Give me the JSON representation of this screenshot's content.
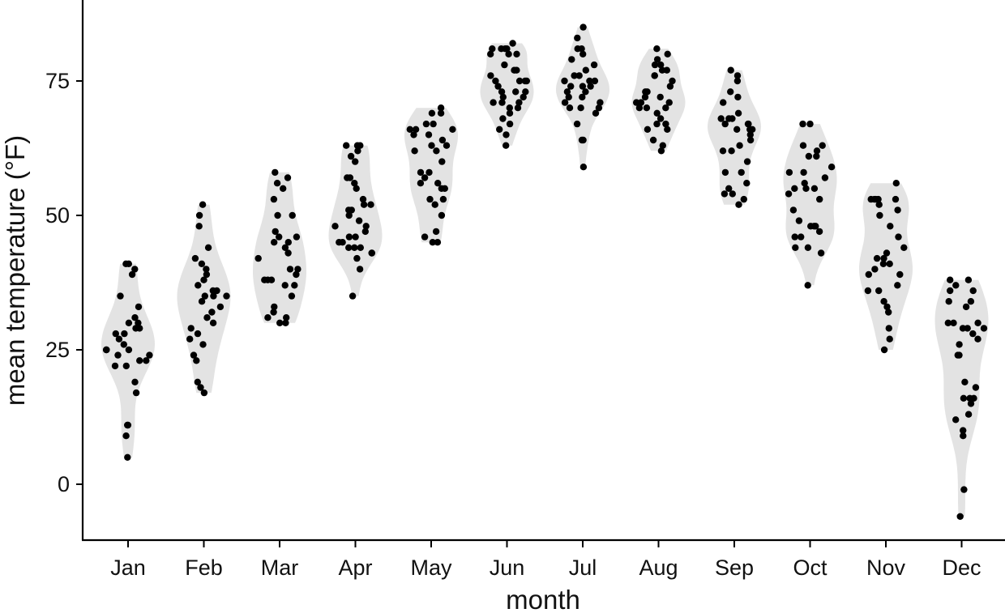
{
  "chart_data": {
    "type": "violin",
    "xlabel": "month",
    "ylabel": "mean temperature (°F)",
    "categories": [
      "Jan",
      "Feb",
      "Mar",
      "Apr",
      "May",
      "Jun",
      "Jul",
      "Aug",
      "Sep",
      "Oct",
      "Nov",
      "Dec"
    ],
    "ylim": [
      -10,
      88
    ],
    "yticks": [
      0,
      25,
      50,
      75
    ],
    "grid": false,
    "colors": {
      "violin_fill": "#e3e3e3",
      "points": "#000000"
    },
    "series": [
      {
        "category": "Jan",
        "values": [
          41,
          41,
          40,
          39,
          35,
          33,
          31,
          30,
          30,
          29,
          29,
          28,
          28,
          27,
          26,
          25,
          25,
          25,
          24,
          24,
          23,
          23,
          22,
          22,
          19,
          17,
          11,
          11,
          9,
          5
        ]
      },
      {
        "category": "Feb",
        "values": [
          52,
          50,
          48,
          44,
          42,
          41,
          40,
          39,
          38,
          37,
          36,
          36,
          35,
          35,
          35,
          34,
          33,
          32,
          31,
          30,
          29,
          28,
          27,
          26,
          24,
          23,
          19,
          18,
          17
        ]
      },
      {
        "category": "Mar",
        "values": [
          58,
          57,
          56,
          55,
          53,
          50,
          50,
          47,
          46,
          46,
          45,
          45,
          44,
          43,
          42,
          40,
          40,
          39,
          38,
          38,
          38,
          37,
          37,
          35,
          33,
          32,
          31,
          31,
          30,
          30
        ]
      },
      {
        "category": "Apr",
        "values": [
          63,
          63,
          63,
          62,
          61,
          60,
          57,
          57,
          56,
          55,
          53,
          52,
          52,
          51,
          51,
          50,
          49,
          48,
          48,
          47,
          46,
          46,
          45,
          45,
          44,
          44,
          44,
          43,
          43,
          42,
          40,
          35
        ]
      },
      {
        "category": "May",
        "values": [
          70,
          69,
          69,
          67,
          67,
          66,
          66,
          66,
          65,
          65,
          64,
          63,
          63,
          62,
          62,
          60,
          58,
          58,
          57,
          56,
          56,
          55,
          55,
          53,
          53,
          52,
          50,
          47,
          46,
          45,
          45
        ]
      },
      {
        "category": "Jun",
        "values": [
          82,
          81,
          81,
          81,
          81,
          80,
          80,
          80,
          78,
          77,
          77,
          76,
          75,
          75,
          75,
          75,
          74,
          73,
          73,
          73,
          72,
          72,
          71,
          71,
          71,
          70,
          70,
          69,
          68,
          67,
          66,
          65,
          63
        ]
      },
      {
        "category": "Jul",
        "values": [
          85,
          83,
          81,
          81,
          80,
          79,
          78,
          77,
          76,
          76,
          75,
          75,
          75,
          74,
          74,
          74,
          73,
          73,
          72,
          72,
          71,
          71,
          70,
          70,
          70,
          69,
          67,
          64,
          64,
          59
        ]
      },
      {
        "category": "Aug",
        "values": [
          81,
          80,
          79,
          78,
          78,
          77,
          77,
          76,
          76,
          75,
          74,
          73,
          73,
          72,
          72,
          71,
          71,
          71,
          70,
          70,
          70,
          69,
          68,
          67,
          67,
          66,
          66,
          64,
          63,
          62
        ]
      },
      {
        "category": "Sep",
        "values": [
          77,
          76,
          75,
          73,
          72,
          71,
          69,
          68,
          68,
          68,
          67,
          67,
          67,
          66,
          66,
          66,
          65,
          64,
          63,
          62,
          62,
          60,
          58,
          58,
          56,
          55,
          54,
          54,
          53,
          52
        ]
      },
      {
        "category": "Oct",
        "values": [
          67,
          67,
          63,
          63,
          62,
          61,
          61,
          59,
          58,
          58,
          57,
          56,
          55,
          55,
          55,
          54,
          53,
          51,
          49,
          48,
          48,
          48,
          47,
          46,
          46,
          44,
          44,
          43,
          37
        ]
      },
      {
        "category": "Nov",
        "values": [
          56,
          53,
          53,
          53,
          53,
          53,
          52,
          51,
          50,
          48,
          46,
          44,
          43,
          42,
          42,
          41,
          41,
          40,
          39,
          39,
          37,
          36,
          36,
          34,
          33,
          32,
          29,
          27,
          25
        ]
      },
      {
        "category": "Dec",
        "values": [
          38,
          38,
          37,
          36,
          36,
          34,
          34,
          33,
          30,
          30,
          30,
          29,
          29,
          29,
          28,
          27,
          26,
          24,
          24,
          19,
          18,
          16,
          16,
          16,
          15,
          13,
          12,
          10,
          9,
          -1,
          -6
        ]
      }
    ]
  }
}
